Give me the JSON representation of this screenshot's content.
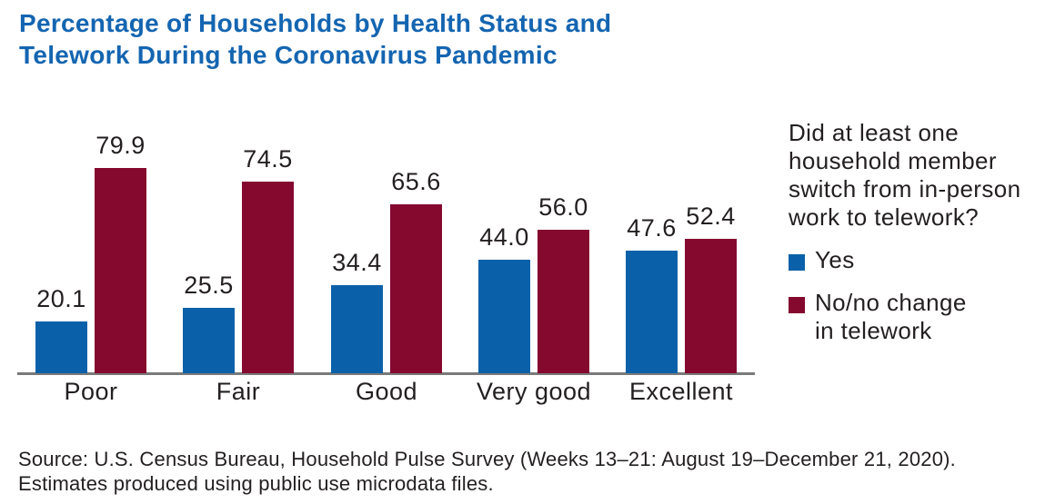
{
  "header": {
    "title": "Percentage of Households by Health Status and\nTelework During the Coronavirus Pandemic"
  },
  "chart_data": {
    "type": "bar",
    "title": "Percentage of Households by Health Status and Telework During the Coronavirus Pandemic",
    "categories": [
      "Poor",
      "Fair",
      "Good",
      "Very good",
      "Excellent"
    ],
    "series": [
      {
        "key": "yes",
        "name": "Yes",
        "color": "#0B61A9",
        "values": [
          20.1,
          25.5,
          34.4,
          44.0,
          47.6
        ],
        "value_labels": [
          "20.1",
          "25.5",
          "34.4",
          "44.0",
          "47.6"
        ]
      },
      {
        "key": "no",
        "name": "No/no change in telework",
        "color": "#85082F",
        "values": [
          79.9,
          74.5,
          65.6,
          56.0,
          52.4
        ],
        "value_labels": [
          "79.9",
          "74.5",
          "65.6",
          "56.0",
          "52.4"
        ]
      }
    ],
    "legend_title": "Did at least one household member switch from in-person work to telework?",
    "legend_position": "right",
    "value_labels_shown": true,
    "y_axis_visible": false,
    "gridlines": false,
    "ylim": [
      0,
      100
    ],
    "unit": "percent"
  },
  "legend": {
    "title": "Did at least one\nhousehold member\nswitch from in-person\nwork to telework?",
    "items": [
      {
        "label": "Yes",
        "color": "#0B61A9"
      },
      {
        "label": "No/no change\nin telework",
        "color": "#85082F"
      }
    ]
  },
  "source": {
    "text": "Source: U.S. Census Bureau, Household Pulse Survey (Weeks 13–21: August 19–December 21, 2020).\nEstimates produced using public use microdata files."
  },
  "colors": {
    "title_blue": "#1465B1",
    "bar_blue": "#0B61A9",
    "bar_maroon": "#85082F",
    "axis_gray": "#7A7A7A",
    "text_dark": "#231F20",
    "background": "#FFFFFF"
  }
}
